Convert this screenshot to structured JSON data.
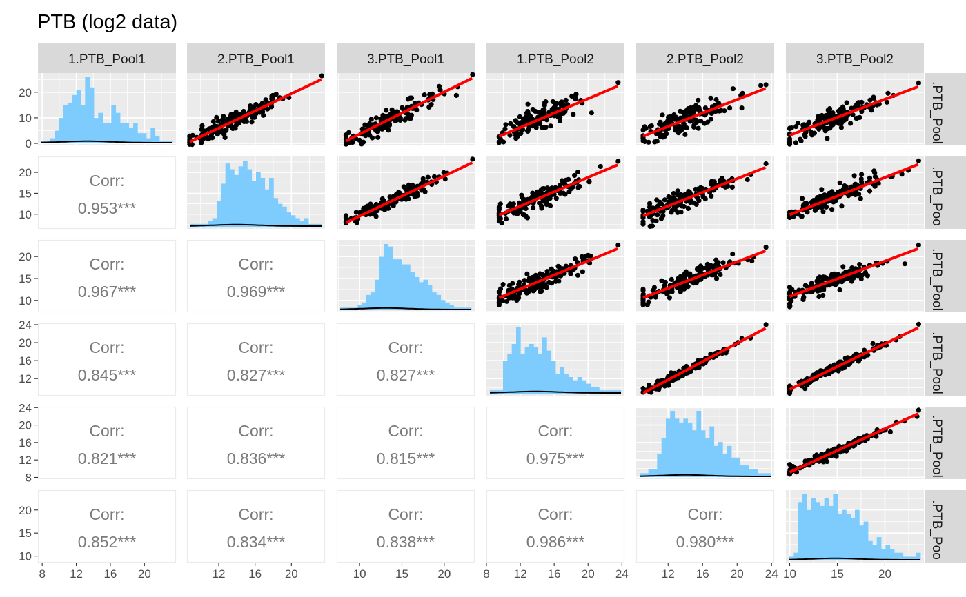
{
  "chart": {
    "title": "PTB (log2 data)",
    "colors": {
      "histogram": "#7ecbfd",
      "fit_line": "#ff0000",
      "points": "#000000",
      "panel_bg": "#ebebeb",
      "strip_bg": "#d9d9d9",
      "corr_text": "#7a7a7a"
    },
    "column_labels": [
      "1.PTB_Pool1",
      "2.PTB_Pool1",
      "3.PTB_Pool1",
      "1.PTB_Pool2",
      "2.PTB_Pool2",
      "3.PTB_Pool2"
    ],
    "row_labels": [
      ".PTB_Pool",
      ".PTB_Poo",
      ".PTB_Pool",
      ".PTB_Pool",
      ".PTB_Pool",
      ".PTB_Poo"
    ]
  },
  "chart_data": {
    "type": "scatter",
    "subtype": "pairs-matrix",
    "title": "PTB (log2 data)",
    "variables": [
      "1.PTB_Pool1",
      "2.PTB_Pool1",
      "3.PTB_Pool1",
      "1.PTB_Pool2",
      "2.PTB_Pool2",
      "3.PTB_Pool2"
    ],
    "diagonal": "histogram",
    "upper": "scatter with linear fit",
    "lower": "correlation",
    "correlation_label": "Corr:",
    "correlations": [
      {
        "row": 2,
        "col": 1,
        "text": "0.953***"
      },
      {
        "row": 3,
        "col": 1,
        "text": "0.967***"
      },
      {
        "row": 3,
        "col": 2,
        "text": "0.969***"
      },
      {
        "row": 4,
        "col": 1,
        "text": "0.845***"
      },
      {
        "row": 4,
        "col": 2,
        "text": "0.827***"
      },
      {
        "row": 4,
        "col": 3,
        "text": "0.827***"
      },
      {
        "row": 5,
        "col": 1,
        "text": "0.821***"
      },
      {
        "row": 5,
        "col": 2,
        "text": "0.836***"
      },
      {
        "row": 5,
        "col": 3,
        "text": "0.815***"
      },
      {
        "row": 5,
        "col": 4,
        "text": "0.975***"
      },
      {
        "row": 6,
        "col": 1,
        "text": "0.852***"
      },
      {
        "row": 6,
        "col": 2,
        "text": "0.834***"
      },
      {
        "row": 6,
        "col": 3,
        "text": "0.838***"
      },
      {
        "row": 6,
        "col": 4,
        "text": "0.986***"
      },
      {
        "row": 6,
        "col": 5,
        "text": "0.980***"
      }
    ],
    "x_axes": [
      {
        "range": [
          7.5,
          23.7
        ],
        "ticks": [
          8,
          12,
          16,
          20
        ]
      },
      {
        "range": [
          8.5,
          23.7
        ],
        "ticks": [
          12,
          16,
          20
        ]
      },
      {
        "range": [
          7.3,
          23.6
        ],
        "ticks": [
          10,
          15,
          20
        ]
      },
      {
        "range": [
          8.0,
          24.3
        ],
        "ticks": [
          8,
          12,
          16,
          20,
          24
        ]
      },
      {
        "range": [
          8.3,
          24.3
        ],
        "ticks": [
          12,
          16,
          20,
          24
        ]
      },
      {
        "range": [
          9.6,
          24.1
        ],
        "ticks": [
          10,
          15,
          20
        ]
      }
    ],
    "y_axes": [
      {
        "range": [
          -0.8,
          27.5
        ],
        "ticks": [
          0,
          10,
          20
        ]
      },
      {
        "range": [
          6.5,
          23.8
        ],
        "ticks": [
          10,
          15,
          20
        ]
      },
      {
        "range": [
          7.3,
          23.8
        ],
        "ticks": [
          10,
          15,
          20
        ]
      },
      {
        "range": [
          8.2,
          24.3
        ],
        "ticks": [
          12,
          16,
          20,
          24
        ]
      },
      {
        "range": [
          7.6,
          24.2
        ],
        "ticks": [
          8,
          12,
          16,
          20,
          24
        ]
      },
      {
        "range": [
          8.6,
          24.3
        ],
        "ticks": [
          10,
          15,
          20
        ]
      }
    ],
    "scatter_fits": [
      {
        "row": 1,
        "col": 2,
        "x": [
          8.8,
          23.3
        ],
        "y": [
          0.6,
          25.0
        ]
      },
      {
        "row": 1,
        "col": 3,
        "x": [
          8.4,
          23.3
        ],
        "y": [
          1.0,
          25.5
        ]
      },
      {
        "row": 1,
        "col": 4,
        "x": [
          9.5,
          23.5
        ],
        "y": [
          2.7,
          22.4
        ]
      },
      {
        "row": 1,
        "col": 5,
        "x": [
          9.1,
          23.3
        ],
        "y": [
          2.8,
          21.5
        ]
      },
      {
        "row": 1,
        "col": 6,
        "x": [
          10.0,
          23.5
        ],
        "y": [
          3.2,
          22.2
        ]
      },
      {
        "row": 2,
        "col": 3,
        "x": [
          8.4,
          23.3
        ],
        "y": [
          8.0,
          22.3
        ]
      },
      {
        "row": 2,
        "col": 4,
        "x": [
          9.5,
          23.5
        ],
        "y": [
          9.8,
          21.8
        ]
      },
      {
        "row": 2,
        "col": 5,
        "x": [
          9.1,
          23.3
        ],
        "y": [
          9.6,
          21.2
        ]
      },
      {
        "row": 2,
        "col": 6,
        "x": [
          10.0,
          23.5
        ],
        "y": [
          9.9,
          21.9
        ]
      },
      {
        "row": 3,
        "col": 4,
        "x": [
          9.5,
          23.5
        ],
        "y": [
          10.6,
          21.8
        ]
      },
      {
        "row": 3,
        "col": 5,
        "x": [
          9.1,
          23.3
        ],
        "y": [
          10.6,
          21.3
        ]
      },
      {
        "row": 3,
        "col": 6,
        "x": [
          10.0,
          23.5
        ],
        "y": [
          10.9,
          21.8
        ]
      },
      {
        "row": 4,
        "col": 5,
        "x": [
          9.1,
          23.3
        ],
        "y": [
          8.8,
          23.2
        ]
      },
      {
        "row": 4,
        "col": 6,
        "x": [
          10.0,
          23.5
        ],
        "y": [
          9.6,
          23.3
        ]
      },
      {
        "row": 5,
        "col": 6,
        "x": [
          10.0,
          23.5
        ],
        "y": [
          9.2,
          22.6
        ]
      }
    ],
    "histograms": [
      {
        "var": 1,
        "range": [
          7.7,
          23.3
        ],
        "counts": [
          1,
          1,
          2,
          5,
          10,
          15,
          16,
          19,
          21,
          15,
          26,
          22,
          10,
          12,
          8,
          8,
          15,
          12,
          8,
          8,
          6,
          8,
          4,
          4,
          2,
          6,
          3,
          1,
          1,
          1
        ]
      },
      {
        "var": 2,
        "range": [
          8.7,
          23.3
        ],
        "counts": [
          1,
          1,
          1,
          1,
          2,
          3,
          9,
          15,
          22,
          20,
          18,
          21,
          23,
          20,
          16,
          19,
          17,
          13,
          17,
          10,
          8,
          7,
          5,
          4,
          3,
          2,
          3,
          1,
          1,
          1
        ]
      },
      {
        "var": 3,
        "range": [
          8.3,
          23.3
        ],
        "counts": [
          1,
          1,
          1,
          1,
          2,
          3,
          6,
          7,
          12,
          21,
          26,
          25,
          20,
          20,
          18,
          18,
          15,
          13,
          11,
          12,
          10,
          7,
          6,
          4,
          3,
          2,
          1,
          1,
          1,
          1
        ]
      },
      {
        "var": 4,
        "range": [
          9.1,
          23.9
        ],
        "counts": [
          1,
          1,
          1,
          10,
          12,
          15,
          20,
          12,
          14,
          15,
          14,
          12,
          17,
          13,
          10,
          6,
          8,
          6,
          5,
          4,
          5,
          4,
          3,
          2,
          2,
          1,
          1,
          1,
          1,
          1
        ]
      },
      {
        "var": 5,
        "range": [
          8.8,
          23.8
        ],
        "counts": [
          1,
          1,
          2,
          2,
          6,
          10,
          15,
          17,
          15,
          14,
          15,
          14,
          12,
          17,
          12,
          10,
          13,
          8,
          9,
          6,
          8,
          5,
          5,
          3,
          3,
          2,
          2,
          1,
          1,
          1
        ]
      },
      {
        "var": 6,
        "range": [
          9.9,
          23.5
        ],
        "counts": [
          1,
          2,
          15,
          17,
          13,
          16,
          15,
          14,
          16,
          14,
          17,
          12,
          13,
          12,
          11,
          13,
          9,
          10,
          5,
          4,
          6,
          3,
          4,
          3,
          2,
          2,
          1,
          1,
          1,
          2
        ]
      }
    ]
  }
}
